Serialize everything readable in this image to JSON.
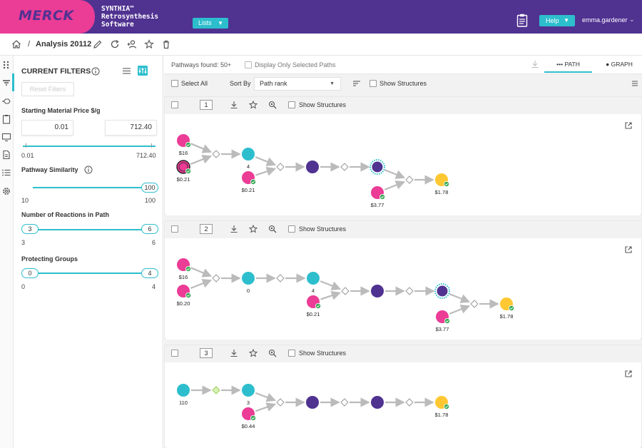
{
  "header": {
    "logo_text": "MERCK",
    "product_lines": [
      "SYNTHIA™",
      "Retrosynthesis",
      "Software"
    ],
    "lists_label": "Lists",
    "help_label": "Help",
    "username": "emma.gardener",
    "colors": {
      "header_bg": "#503291",
      "logo_bg": "#eb3c96",
      "accent": "#2dbecd"
    }
  },
  "breadcrumb": {
    "separator": "/",
    "title": "Analysis 20112"
  },
  "filters": {
    "title": "CURRENT FILTERS",
    "reset_label": "Reset Filters",
    "price": {
      "label": "Starting Material Price $/g",
      "min_value": "0.01",
      "max_value": "712.40",
      "range_min": "0.01",
      "range_max": "712.40"
    },
    "similarity": {
      "label": "Pathway Similarity",
      "value": "100",
      "range_min": "10",
      "range_max": "100"
    },
    "reactions": {
      "label": "Number of Reactions in Path",
      "low": "3",
      "high": "6",
      "range_min": "3",
      "range_max": "6"
    },
    "protecting": {
      "label": "Protecting Groups",
      "low": "0",
      "high": "4",
      "range_min": "0",
      "range_max": "4"
    }
  },
  "results": {
    "found_label": "Pathways found: 50+",
    "display_selected_label": "Display Only Selected Paths",
    "tab_path": "PATH",
    "tab_graph": "GRAPH",
    "select_all_label": "Select All",
    "sort_by_label": "Sort By",
    "sort_value": "Path rank",
    "show_structures_label": "Show Structures"
  },
  "pathways": [
    {
      "rank": "1",
      "show_structures_label": "Show Structures",
      "labels": {
        "n1": "$16",
        "n2": "$0.21",
        "n4": "4",
        "n5": "$0.21",
        "n9": "$3.77",
        "n10": "$1.78"
      }
    },
    {
      "rank": "2",
      "show_structures_label": "Show Structures",
      "labels": {
        "n1": "$16",
        "n2": "$0.20",
        "n3": "0",
        "n4": "4",
        "n5": "$0.21",
        "n9": "$3.77",
        "n10": "$1.78"
      }
    },
    {
      "rank": "3",
      "show_structures_label": "Show Structures",
      "labels": {
        "n1": "110",
        "n3": "3",
        "n5": "$0.44",
        "n10": "$1.78"
      }
    }
  ],
  "icons": {
    "home": "home-icon",
    "edit": "pencil-icon",
    "refresh": "refresh-icon",
    "share": "add-user-icon",
    "favorite": "star-icon",
    "delete": "trash-icon",
    "download": "download-icon",
    "zoom": "zoom-icon",
    "external": "open-external-icon",
    "info": "info-icon"
  },
  "node_colors": {
    "pink": "#eb3c96",
    "cyan": "#2dbecd",
    "purple": "#503291",
    "yellow": "#ffc832",
    "check": "#34a853"
  }
}
